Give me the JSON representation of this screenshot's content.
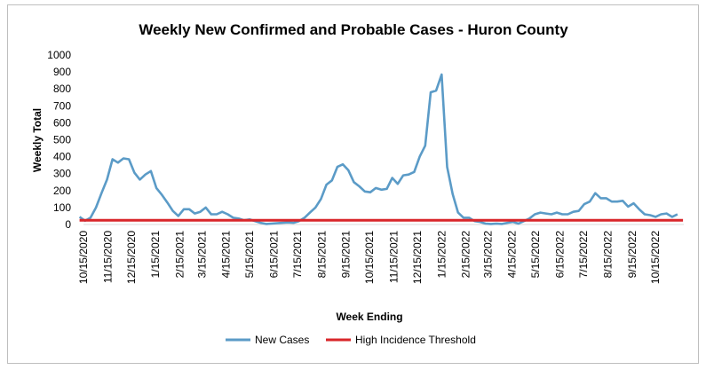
{
  "chart_data": {
    "type": "line",
    "title": "Weekly New Confirmed and Probable Cases - Huron County",
    "xlabel": "Week Ending",
    "ylabel": "Weekly Total",
    "ylim": [
      0,
      1000
    ],
    "yticks": [
      0,
      100,
      200,
      300,
      400,
      500,
      600,
      700,
      800,
      900,
      1000
    ],
    "xlim": [
      "2020-10-15",
      "2022-11-20"
    ],
    "xtick_labels": [
      "10/15/2020",
      "11/15/2020",
      "12/15/2020",
      "1/15/2021",
      "2/15/2021",
      "3/15/2021",
      "4/15/2021",
      "5/15/2021",
      "6/15/2021",
      "7/15/2021",
      "8/15/2021",
      "9/15/2021",
      "10/15/2021",
      "11/15/2021",
      "12/15/2021",
      "1/15/2022",
      "2/15/2022",
      "3/15/2022",
      "4/15/2022",
      "5/15/2022",
      "6/15/2022",
      "7/15/2022",
      "8/15/2022",
      "9/15/2022",
      "10/15/2022"
    ],
    "xtick_dates": [
      "2020-10-15",
      "2020-11-15",
      "2020-12-15",
      "2021-01-15",
      "2021-02-15",
      "2021-03-15",
      "2021-04-15",
      "2021-05-15",
      "2021-06-15",
      "2021-07-15",
      "2021-08-15",
      "2021-09-15",
      "2021-10-15",
      "2021-11-15",
      "2021-12-15",
      "2022-01-15",
      "2022-02-15",
      "2022-03-15",
      "2022-04-15",
      "2022-05-15",
      "2022-06-15",
      "2022-07-15",
      "2022-08-15",
      "2022-09-15",
      "2022-10-15"
    ],
    "grid": false,
    "legend": "bottom",
    "series": [
      {
        "name": "New Cases",
        "color": "#5b9bc7",
        "points": [
          [
            "2020-10-10",
            45
          ],
          [
            "2020-10-17",
            22
          ],
          [
            "2020-10-24",
            40
          ],
          [
            "2020-10-31",
            100
          ],
          [
            "2020-11-07",
            185
          ],
          [
            "2020-11-14",
            265
          ],
          [
            "2020-11-21",
            385
          ],
          [
            "2020-11-28",
            365
          ],
          [
            "2020-12-05",
            390
          ],
          [
            "2020-12-12",
            385
          ],
          [
            "2020-12-19",
            305
          ],
          [
            "2020-12-26",
            265
          ],
          [
            "2021-01-02",
            295
          ],
          [
            "2021-01-09",
            315
          ],
          [
            "2021-01-16",
            215
          ],
          [
            "2021-01-23",
            175
          ],
          [
            "2021-01-30",
            130
          ],
          [
            "2021-02-06",
            80
          ],
          [
            "2021-02-13",
            50
          ],
          [
            "2021-02-20",
            90
          ],
          [
            "2021-02-27",
            90
          ],
          [
            "2021-03-06",
            65
          ],
          [
            "2021-03-13",
            75
          ],
          [
            "2021-03-20",
            100
          ],
          [
            "2021-03-27",
            60
          ],
          [
            "2021-04-03",
            60
          ],
          [
            "2021-04-10",
            75
          ],
          [
            "2021-04-17",
            60
          ],
          [
            "2021-04-24",
            40
          ],
          [
            "2021-05-01",
            35
          ],
          [
            "2021-05-08",
            25
          ],
          [
            "2021-05-15",
            30
          ],
          [
            "2021-05-22",
            20
          ],
          [
            "2021-05-29",
            10
          ],
          [
            "2021-06-05",
            3
          ],
          [
            "2021-06-12",
            5
          ],
          [
            "2021-06-19",
            8
          ],
          [
            "2021-06-26",
            10
          ],
          [
            "2021-07-03",
            12
          ],
          [
            "2021-07-10",
            10
          ],
          [
            "2021-07-17",
            20
          ],
          [
            "2021-07-24",
            40
          ],
          [
            "2021-07-31",
            70
          ],
          [
            "2021-08-07",
            100
          ],
          [
            "2021-08-14",
            150
          ],
          [
            "2021-08-21",
            235
          ],
          [
            "2021-08-28",
            260
          ],
          [
            "2021-09-04",
            340
          ],
          [
            "2021-09-11",
            355
          ],
          [
            "2021-09-18",
            320
          ],
          [
            "2021-09-25",
            250
          ],
          [
            "2021-10-02",
            225
          ],
          [
            "2021-10-09",
            195
          ],
          [
            "2021-10-16",
            190
          ],
          [
            "2021-10-23",
            215
          ],
          [
            "2021-10-30",
            205
          ],
          [
            "2021-11-06",
            210
          ],
          [
            "2021-11-13",
            275
          ],
          [
            "2021-11-20",
            240
          ],
          [
            "2021-11-27",
            290
          ],
          [
            "2021-12-04",
            295
          ],
          [
            "2021-12-11",
            310
          ],
          [
            "2021-12-18",
            400
          ],
          [
            "2021-12-25",
            465
          ],
          [
            "2022-01-01",
            780
          ],
          [
            "2022-01-08",
            790
          ],
          [
            "2022-01-15",
            885
          ],
          [
            "2022-01-22",
            340
          ],
          [
            "2022-01-29",
            180
          ],
          [
            "2022-02-05",
            70
          ],
          [
            "2022-02-12",
            40
          ],
          [
            "2022-02-19",
            40
          ],
          [
            "2022-02-26",
            20
          ],
          [
            "2022-03-05",
            15
          ],
          [
            "2022-03-12",
            5
          ],
          [
            "2022-03-19",
            3
          ],
          [
            "2022-03-26",
            5
          ],
          [
            "2022-04-02",
            3
          ],
          [
            "2022-04-09",
            10
          ],
          [
            "2022-04-16",
            15
          ],
          [
            "2022-04-23",
            5
          ],
          [
            "2022-04-30",
            20
          ],
          [
            "2022-05-07",
            35
          ],
          [
            "2022-05-14",
            60
          ],
          [
            "2022-05-21",
            70
          ],
          [
            "2022-05-28",
            65
          ],
          [
            "2022-06-04",
            60
          ],
          [
            "2022-06-11",
            70
          ],
          [
            "2022-06-18",
            60
          ],
          [
            "2022-06-25",
            60
          ],
          [
            "2022-07-02",
            75
          ],
          [
            "2022-07-09",
            80
          ],
          [
            "2022-07-16",
            120
          ],
          [
            "2022-07-23",
            135
          ],
          [
            "2022-07-30",
            185
          ],
          [
            "2022-08-06",
            155
          ],
          [
            "2022-08-13",
            155
          ],
          [
            "2022-08-20",
            135
          ],
          [
            "2022-08-27",
            135
          ],
          [
            "2022-09-03",
            140
          ],
          [
            "2022-09-10",
            105
          ],
          [
            "2022-09-17",
            125
          ],
          [
            "2022-09-24",
            90
          ],
          [
            "2022-10-01",
            60
          ],
          [
            "2022-10-08",
            55
          ],
          [
            "2022-10-15",
            45
          ],
          [
            "2022-10-22",
            60
          ],
          [
            "2022-10-29",
            65
          ],
          [
            "2022-11-05",
            45
          ],
          [
            "2022-11-12",
            60
          ]
        ]
      },
      {
        "name": "High Incidence Threshold",
        "color": "#d9262a",
        "points": [
          [
            "2020-10-10",
            25
          ],
          [
            "2022-11-19",
            25
          ]
        ]
      }
    ]
  }
}
